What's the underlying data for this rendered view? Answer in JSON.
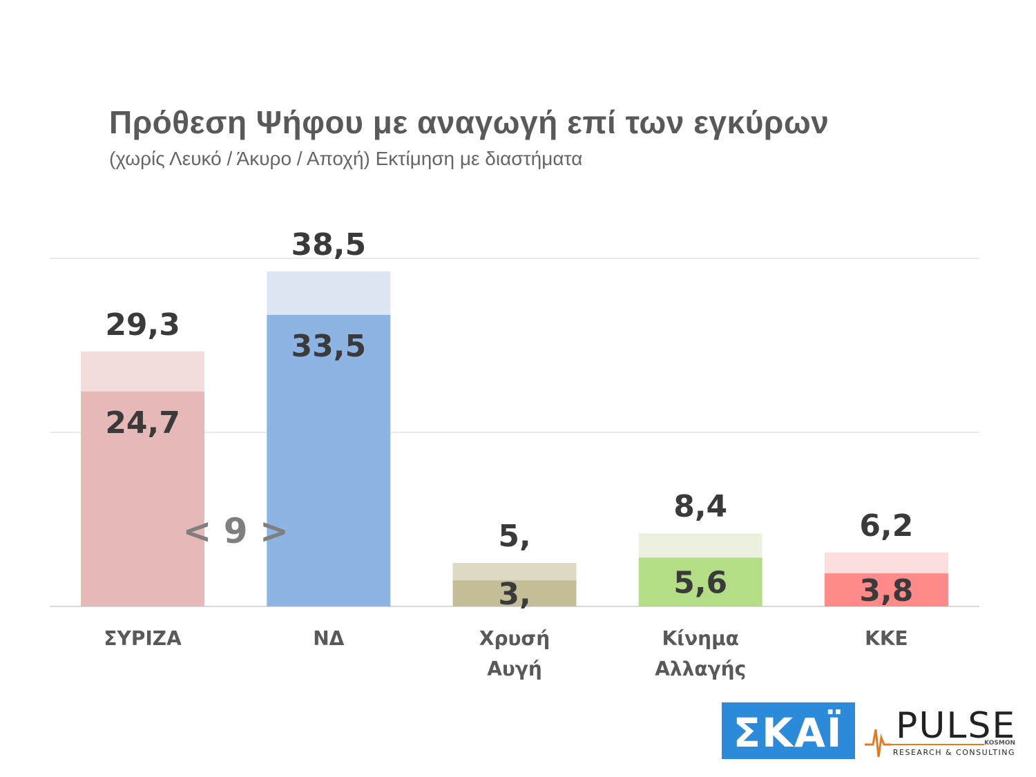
{
  "header": {
    "title": "Πρόθεση Ψήφου με αναγωγή επί των εγκύρων",
    "subtitle": "(χωρίς Λευκό / Άκυρο / Αποχή)   Εκτίμηση με διαστήματα"
  },
  "chart_data": {
    "type": "bar",
    "ylim": [
      0,
      40
    ],
    "grid": true,
    "categories": [
      {
        "lines": [
          "ΣΥΡΙΖΑ"
        ]
      },
      {
        "lines": [
          "ΝΔ"
        ]
      },
      {
        "lines": [
          "Χρυσή",
          "Αυγή"
        ]
      },
      {
        "lines": [
          "Κίνημα",
          "Αλλαγής"
        ]
      },
      {
        "lines": [
          "ΚΚΕ"
        ]
      }
    ],
    "series": [
      {
        "values": [
          24.7,
          33.5,
          3,
          5.6,
          3.8
        ],
        "labels": [
          "24,7",
          "33,5",
          "3,",
          "5,6",
          "3,8"
        ]
      },
      {
        "values": [
          29.3,
          38.5,
          5,
          8.4,
          6.2
        ],
        "labels": [
          "29,3",
          "38,5",
          "5,",
          "8,4",
          "6,2"
        ]
      }
    ],
    "colors": {
      "low": [
        "#e6b8b8",
        "#8eb4e3",
        "#c4bd97",
        "#b3de86",
        "#ff8a8a"
      ],
      "high": [
        "#f2dcdc",
        "#dce6f2",
        "#ddd9c3",
        "#ebf1de",
        "#fddede"
      ]
    },
    "annotation": {
      "text": "< 9 >"
    }
  },
  "logos": {
    "skai": {
      "text": "ΣΚΑΪ",
      "color": "#2b8ad9"
    },
    "pulse": {
      "text": "PULSE",
      "small": "KOSMON",
      "tagline": "RESEARCH & CONSULTING",
      "accent": "#e07b20"
    }
  }
}
